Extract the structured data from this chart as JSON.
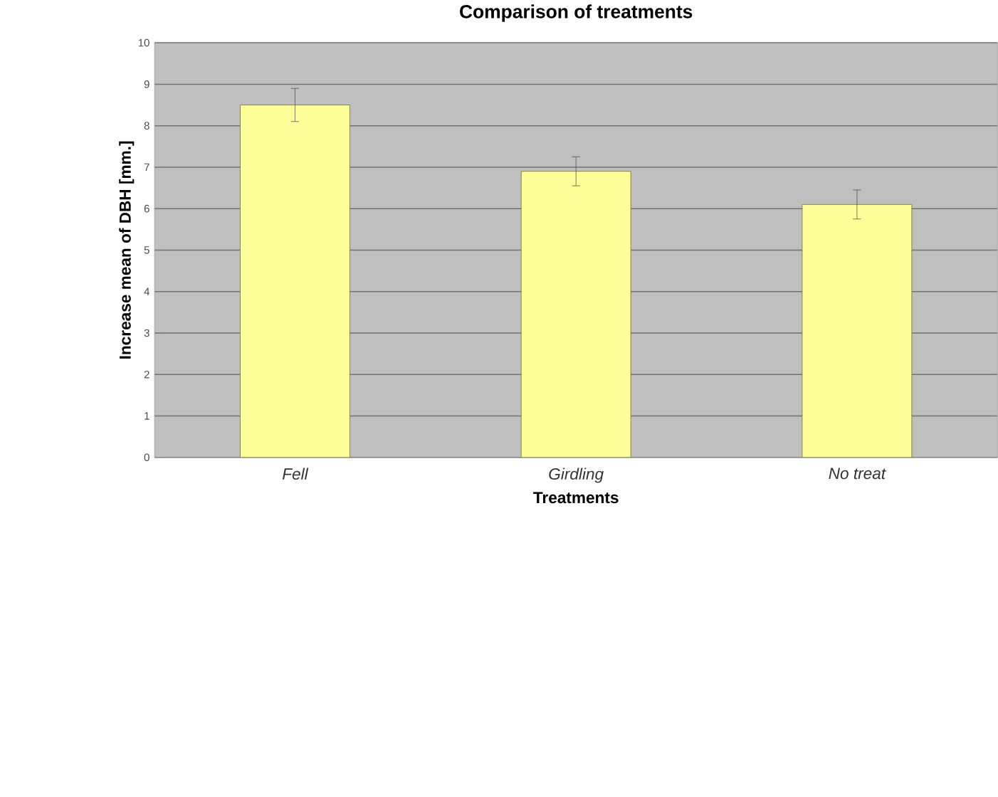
{
  "chart_data": {
    "type": "bar",
    "title": "Comparison of treatments",
    "xlabel": "Treatments",
    "ylabel": "Increase mean of DBH [mm.]",
    "categories": [
      "Fell",
      "Girdling",
      "No treat"
    ],
    "values": [
      8.5,
      6.9,
      6.1
    ],
    "errors": [
      0.4,
      0.35,
      0.35
    ],
    "color": "#ffff99",
    "ylim": [
      0,
      10
    ],
    "yticks": [
      0,
      1,
      2,
      3,
      4,
      5,
      6,
      7,
      8,
      9,
      10
    ],
    "grid": "y"
  }
}
